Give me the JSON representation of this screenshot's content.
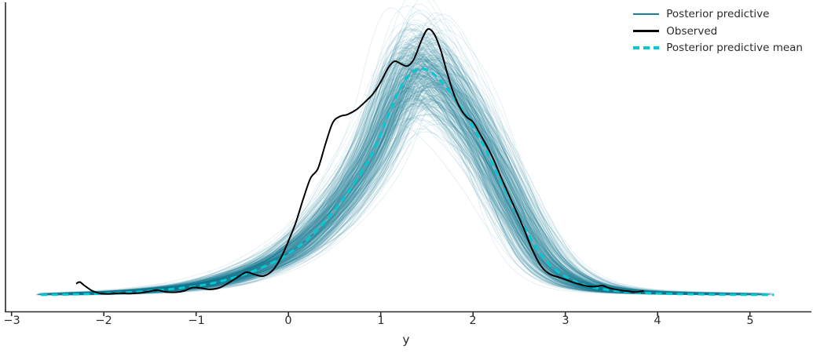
{
  "figure": {
    "background": "#ffffff"
  },
  "legend": {
    "items": [
      {
        "label": "Posterior predictive",
        "color": "#1b7e96",
        "style": "solid"
      },
      {
        "label": "Observed",
        "color": "#000000",
        "style": "solid"
      },
      {
        "label": "Posterior predictive mean",
        "color": "#00c9d2",
        "style": "dashed"
      }
    ]
  },
  "axis": {
    "xlabel": "y",
    "xtick_labels": [
      "−3",
      "−2",
      "−1",
      "0",
      "1",
      "2",
      "3",
      "4",
      "5"
    ],
    "xtick_values": [
      -3,
      -2,
      -1,
      0,
      1,
      2,
      3,
      4,
      5
    ],
    "color": "#2b2b2b"
  },
  "chart_data": {
    "type": "line",
    "subtype": "kde_posterior_predictive_check",
    "title": "",
    "xlabel": "y",
    "ylabel": "",
    "xlim": [
      -3.07,
      5.67
    ],
    "ylim": [
      0,
      0.45
    ],
    "grid": false,
    "legend_position": "upper right",
    "series": [
      {
        "name": "Posterior predictive",
        "color": "#1b7e96",
        "style": "ensemble",
        "opacity": 0.12,
        "n_curves": 380,
        "x_range": [
          -2.74,
          5.3
        ],
        "description": "translucent KDE curves of posterior predictive draws forming a band around the mean"
      },
      {
        "name": "Observed",
        "color": "#000000",
        "style": "solid",
        "points": [
          [
            -2.3,
            0.019
          ],
          [
            -2.26,
            0.0215
          ],
          [
            -2.21,
            0.016
          ],
          [
            -2.13,
            0.008
          ],
          [
            -2.05,
            0.004
          ],
          [
            -1.95,
            0.003
          ],
          [
            -1.83,
            0.004
          ],
          [
            -1.72,
            0.0035
          ],
          [
            -1.6,
            0.0045
          ],
          [
            -1.5,
            0.007
          ],
          [
            -1.42,
            0.009
          ],
          [
            -1.33,
            0.006
          ],
          [
            -1.22,
            0.0055
          ],
          [
            -1.12,
            0.008
          ],
          [
            -1.04,
            0.013
          ],
          [
            -0.95,
            0.012
          ],
          [
            -0.85,
            0.01
          ],
          [
            -0.74,
            0.013
          ],
          [
            -0.63,
            0.022
          ],
          [
            -0.52,
            0.032
          ],
          [
            -0.45,
            0.037
          ],
          [
            -0.36,
            0.033
          ],
          [
            -0.27,
            0.031
          ],
          [
            -0.17,
            0.04
          ],
          [
            -0.08,
            0.06
          ],
          [
            0.0,
            0.086
          ],
          [
            0.08,
            0.115
          ],
          [
            0.16,
            0.152
          ],
          [
            0.24,
            0.185
          ],
          [
            0.32,
            0.2
          ],
          [
            0.4,
            0.238
          ],
          [
            0.48,
            0.272
          ],
          [
            0.56,
            0.282
          ],
          [
            0.64,
            0.285
          ],
          [
            0.74,
            0.293
          ],
          [
            0.84,
            0.306
          ],
          [
            0.92,
            0.318
          ],
          [
            1.0,
            0.336
          ],
          [
            1.08,
            0.358
          ],
          [
            1.15,
            0.3685
          ],
          [
            1.22,
            0.3645
          ],
          [
            1.29,
            0.361
          ],
          [
            1.36,
            0.372
          ],
          [
            1.44,
            0.401
          ],
          [
            1.51,
            0.419
          ],
          [
            1.58,
            0.411
          ],
          [
            1.65,
            0.386
          ],
          [
            1.72,
            0.35
          ],
          [
            1.79,
            0.318
          ],
          [
            1.86,
            0.295
          ],
          [
            1.93,
            0.281
          ],
          [
            2.0,
            0.273
          ],
          [
            2.07,
            0.256
          ],
          [
            2.15,
            0.235
          ],
          [
            2.22,
            0.215
          ],
          [
            2.32,
            0.181
          ],
          [
            2.43,
            0.145
          ],
          [
            2.54,
            0.109
          ],
          [
            2.64,
            0.073
          ],
          [
            2.74,
            0.046
          ],
          [
            2.83,
            0.034
          ],
          [
            2.93,
            0.029
          ],
          [
            3.03,
            0.024
          ],
          [
            3.13,
            0.019
          ],
          [
            3.24,
            0.015
          ],
          [
            3.33,
            0.0145
          ],
          [
            3.4,
            0.016
          ],
          [
            3.48,
            0.012
          ],
          [
            3.58,
            0.009
          ],
          [
            3.68,
            0.007
          ],
          [
            3.77,
            0.0058
          ],
          [
            3.85,
            0.0075
          ]
        ]
      },
      {
        "name": "Posterior predictive mean",
        "color": "#00c9d2",
        "style": "dashed",
        "points": [
          [
            -2.68,
            0.0013
          ],
          [
            -2.45,
            0.0018
          ],
          [
            -2.2,
            0.0026
          ],
          [
            -1.95,
            0.0038
          ],
          [
            -1.7,
            0.0055
          ],
          [
            -1.45,
            0.008
          ],
          [
            -1.2,
            0.0115
          ],
          [
            -0.95,
            0.016
          ],
          [
            -0.7,
            0.024
          ],
          [
            -0.45,
            0.035
          ],
          [
            -0.2,
            0.05
          ],
          [
            0.0,
            0.066
          ],
          [
            0.2,
            0.088
          ],
          [
            0.4,
            0.117
          ],
          [
            0.6,
            0.153
          ],
          [
            0.8,
            0.196
          ],
          [
            0.95,
            0.237
          ],
          [
            1.1,
            0.29
          ],
          [
            1.25,
            0.336
          ],
          [
            1.4,
            0.356
          ],
          [
            1.55,
            0.351
          ],
          [
            1.7,
            0.329
          ],
          [
            1.85,
            0.3
          ],
          [
            2.0,
            0.266
          ],
          [
            2.15,
            0.226
          ],
          [
            2.3,
            0.18
          ],
          [
            2.45,
            0.136
          ],
          [
            2.6,
            0.096
          ],
          [
            2.75,
            0.062
          ],
          [
            2.9,
            0.04
          ],
          [
            3.05,
            0.026
          ],
          [
            3.2,
            0.017
          ],
          [
            3.4,
            0.0105
          ],
          [
            3.6,
            0.0068
          ],
          [
            3.85,
            0.0045
          ],
          [
            4.1,
            0.0032
          ],
          [
            4.4,
            0.0023
          ],
          [
            4.7,
            0.0017
          ],
          [
            5.0,
            0.0014
          ],
          [
            5.26,
            0.0013
          ]
        ]
      }
    ]
  }
}
